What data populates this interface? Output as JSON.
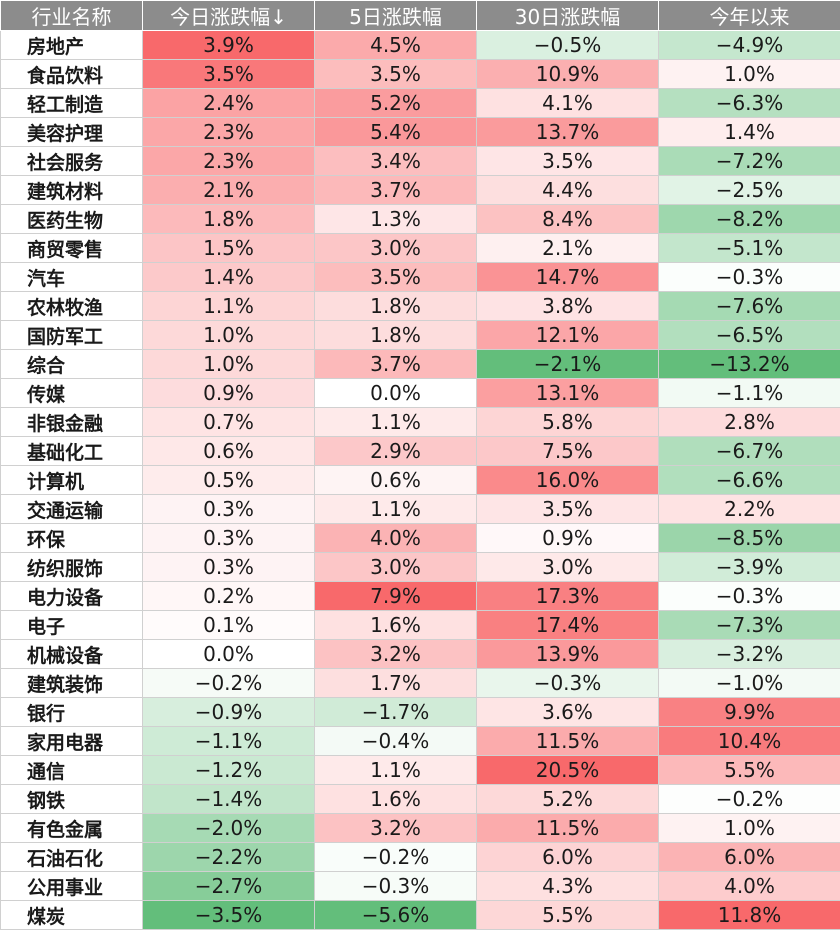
{
  "table": {
    "headers": [
      "行业名称",
      "今日涨跌幅↓",
      "5日涨跌幅",
      "30日涨跌幅",
      "今年以来"
    ],
    "rows": [
      [
        "房地产",
        "3.9%",
        "4.5%",
        "−0.5%",
        "−4.9%"
      ],
      [
        "食品饮料",
        "3.5%",
        "3.5%",
        "10.9%",
        "1.0%"
      ],
      [
        "轻工制造",
        "2.4%",
        "5.2%",
        "4.1%",
        "−6.3%"
      ],
      [
        "美容护理",
        "2.3%",
        "5.4%",
        "13.7%",
        "1.4%"
      ],
      [
        "社会服务",
        "2.3%",
        "3.4%",
        "3.5%",
        "−7.2%"
      ],
      [
        "建筑材料",
        "2.1%",
        "3.7%",
        "4.4%",
        "−2.5%"
      ],
      [
        "医药生物",
        "1.8%",
        "1.3%",
        "8.4%",
        "−8.2%"
      ],
      [
        "商贸零售",
        "1.5%",
        "3.0%",
        "2.1%",
        "−5.1%"
      ],
      [
        "汽车",
        "1.4%",
        "3.5%",
        "14.7%",
        "−0.3%"
      ],
      [
        "农林牧渔",
        "1.1%",
        "1.8%",
        "3.8%",
        "−7.6%"
      ],
      [
        "国防军工",
        "1.0%",
        "1.8%",
        "12.1%",
        "−6.5%"
      ],
      [
        "综合",
        "1.0%",
        "3.7%",
        "−2.1%",
        "−13.2%"
      ],
      [
        "传媒",
        "0.9%",
        "0.0%",
        "13.1%",
        "−1.1%"
      ],
      [
        "非银金融",
        "0.7%",
        "1.1%",
        "5.8%",
        "2.8%"
      ],
      [
        "基础化工",
        "0.6%",
        "2.9%",
        "7.5%",
        "−6.7%"
      ],
      [
        "计算机",
        "0.5%",
        "0.6%",
        "16.0%",
        "−6.6%"
      ],
      [
        "交通运输",
        "0.3%",
        "1.1%",
        "3.5%",
        "2.2%"
      ],
      [
        "环保",
        "0.3%",
        "4.0%",
        "0.9%",
        "−8.5%"
      ],
      [
        "纺织服饰",
        "0.3%",
        "3.0%",
        "3.0%",
        "−3.9%"
      ],
      [
        "电力设备",
        "0.2%",
        "7.9%",
        "17.3%",
        "−0.3%"
      ],
      [
        "电子",
        "0.1%",
        "1.6%",
        "17.4%",
        "−7.3%"
      ],
      [
        "机械设备",
        "0.0%",
        "3.2%",
        "13.9%",
        "−3.2%"
      ],
      [
        "建筑装饰",
        "−0.2%",
        "1.7%",
        "−0.3%",
        "−1.0%"
      ],
      [
        "银行",
        "−0.9%",
        "−1.7%",
        "3.6%",
        "9.9%"
      ],
      [
        "家用电器",
        "−1.1%",
        "−0.4%",
        "11.5%",
        "10.4%"
      ],
      [
        "通信",
        "−1.2%",
        "1.1%",
        "20.5%",
        "5.5%"
      ],
      [
        "钢铁",
        "−1.4%",
        "1.6%",
        "5.2%",
        "−0.2%"
      ],
      [
        "有色金属",
        "−2.0%",
        "3.2%",
        "11.5%",
        "1.0%"
      ],
      [
        "石油石化",
        "−2.2%",
        "−0.2%",
        "6.0%",
        "6.0%"
      ],
      [
        "公用事业",
        "−2.7%",
        "−0.3%",
        "4.3%",
        "4.0%"
      ],
      [
        "煤炭",
        "−3.5%",
        "−5.6%",
        "5.5%",
        "11.8%"
      ]
    ]
  },
  "colors": {
    "header_bg": "#8C8C8C",
    "header_text": "#FFFFFF",
    "positive": "#F8696B",
    "negative": "#63BE7B",
    "neutral": "#FFFFFF",
    "grid": "#D0D0D0"
  }
}
